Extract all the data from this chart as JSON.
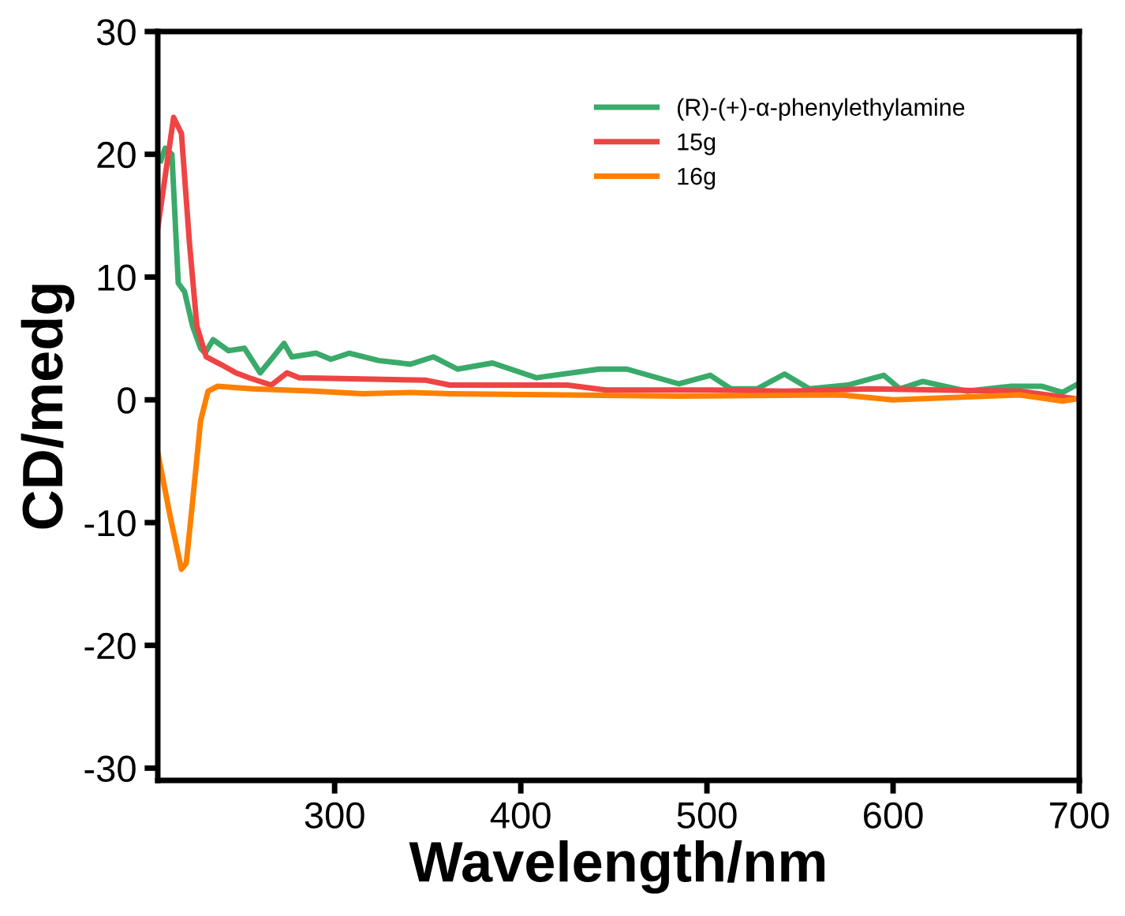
{
  "chart_data": {
    "type": "line",
    "xlabel": "Wavelength/nm",
    "ylabel": "CD/medg",
    "xlim": [
      205,
      700
    ],
    "xticks": [
      300,
      400,
      500,
      600,
      700
    ],
    "ylim": [
      -31,
      30
    ],
    "yticks": [
      30,
      20,
      10,
      0,
      {
        "value": -10,
        "label": "-10"
      },
      {
        "value": -20,
        "label": "-20"
      },
      {
        "value": -30,
        "label": "-30"
      }
    ],
    "legend": "top right",
    "grid": false,
    "series": [
      {
        "name": "(R)-(+)-α-phenylethylamine",
        "color": "#3aaa6a",
        "x": [
          206.7,
          209,
          212.6,
          216,
          219.4,
          223.7,
          228,
          230.4,
          234.7,
          243,
          251.6,
          260,
          266,
          272.8,
          277,
          290,
          298,
          308,
          323.7,
          340.7,
          353,
          366,
          384.8,
          408.5,
          442,
          457,
          485,
          501.8,
          512.8,
          527,
          541.7,
          555,
          575.6,
          595,
          603.6,
          616,
          640,
          663,
          680,
          691,
          699.4
        ],
        "values": [
          19.5,
          20.5,
          20,
          9.5,
          8.8,
          6,
          4.2,
          3.8,
          4.9,
          4,
          4.2,
          2.2,
          3.3,
          4.6,
          3.5,
          3.8,
          3.3,
          3.8,
          3.2,
          2.9,
          3.5,
          2.5,
          3,
          1.8,
          2.5,
          2.5,
          1.3,
          2,
          0.9,
          0.9,
          2.1,
          0.9,
          1.2,
          2,
          0.9,
          1.5,
          0.7,
          1.1,
          1.1,
          0.6,
          1.3
        ]
      },
      {
        "name": "15g",
        "color": "#ef4444",
        "x": [
          205,
          213.5,
          217.7,
          222,
          226,
          231,
          238.7,
          247,
          254,
          266,
          274.4,
          281,
          315,
          349,
          362,
          391,
          425,
          446,
          502,
          542,
          587,
          668,
          697.7
        ],
        "values": [
          14,
          23,
          21.7,
          12.8,
          6,
          3.5,
          2.9,
          2.2,
          1.8,
          1.2,
          2.2,
          1.8,
          1.7,
          1.6,
          1.2,
          1.2,
          1.2,
          0.8,
          0.8,
          0.7,
          0.9,
          0.7,
          0.1
        ]
      },
      {
        "name": "16g",
        "color": "#ff8000",
        "x": [
          205,
          211.8,
          217.7,
          220.3,
          223.7,
          228,
          232,
          237,
          256,
          290,
          315,
          341,
          362,
          485,
          572,
          600,
          668,
          691,
          699.4
        ],
        "values": [
          -4.3,
          -9.6,
          -13.8,
          -13.3,
          -8.3,
          -1.7,
          0.7,
          1.1,
          0.9,
          0.7,
          0.5,
          0.6,
          0.5,
          0.3,
          0.4,
          0,
          0.4,
          -0.1,
          0.1
        ]
      }
    ]
  }
}
